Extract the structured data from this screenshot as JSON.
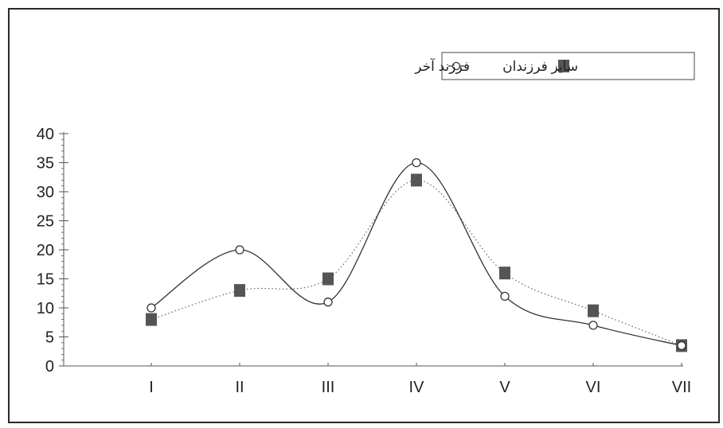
{
  "colors": {
    "frame": "#2a2a2a",
    "axis": "#555555",
    "text": "#222222",
    "series_last_line": "#333333",
    "series_other_marker": "#555555"
  },
  "chart_data": {
    "type": "line",
    "categories": [
      "I",
      "II",
      "III",
      "IV",
      "V",
      "VI",
      "VII"
    ],
    "ylim": [
      0,
      40
    ],
    "yticks": [
      "0",
      "5",
      "10",
      "15",
      "20",
      "25",
      "30",
      "35",
      "40"
    ],
    "legend_position": "top-right",
    "grid": false,
    "series": [
      {
        "name": "فرزند آخر",
        "marker": "open-circle",
        "line": "solid-smooth",
        "values": [
          10,
          20,
          11,
          35,
          12,
          7,
          3.5
        ]
      },
      {
        "name": "سایر فرزندان",
        "marker": "filled-square",
        "line": "dotted-smooth",
        "values": [
          8,
          13,
          15,
          32,
          16,
          9.5,
          3.5
        ]
      }
    ]
  }
}
